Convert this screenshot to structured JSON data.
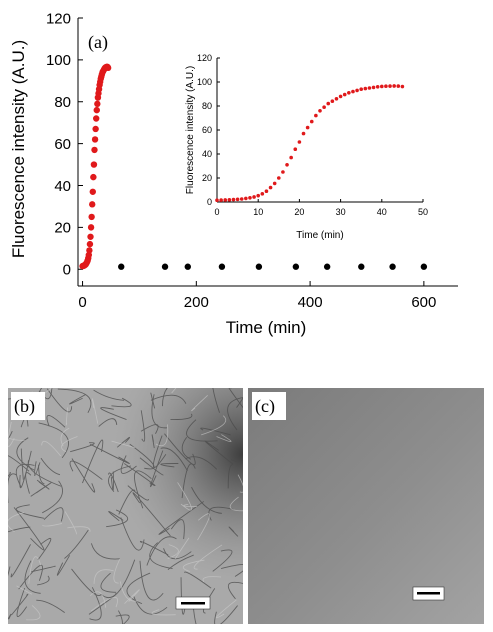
{
  "colors": {
    "series_red": "#e0191b",
    "series_black": "#000000"
  },
  "panels": {
    "a": "(a)",
    "b": "(b)",
    "c": "(c)"
  },
  "images": {
    "b": "TEM micrograph with dense fibrillar network and scale bar",
    "c": "TEM micrograph with featureless grey background and scale bar"
  },
  "chart_data": [
    {
      "type": "scatter",
      "xlabel": "Time (min)",
      "ylabel": "Fluorescence intensity (A.U.)",
      "xlim": [
        -8,
        660
      ],
      "ylim": [
        -8,
        120
      ],
      "xticks": [
        0,
        200,
        400,
        600
      ],
      "yticks": [
        0,
        20,
        40,
        60,
        80,
        100,
        120
      ],
      "series": [
        {
          "color": "#e0191b",
          "x": [
            0,
            1,
            2,
            3,
            4,
            5,
            6,
            7,
            8,
            9,
            10,
            11,
            12,
            13,
            14,
            15,
            16,
            17,
            18,
            19,
            20,
            21,
            22,
            23,
            24,
            25,
            26,
            27,
            28,
            29,
            30,
            31,
            32,
            33,
            34,
            35,
            36,
            37,
            38,
            39,
            40,
            41,
            42,
            43,
            44,
            45
          ],
          "y": [
            1.5,
            1.6,
            1.7,
            1.8,
            2,
            2.2,
            2.5,
            3,
            3.5,
            4.2,
            5.3,
            6.8,
            9,
            12,
            15.5,
            20,
            25,
            31,
            37,
            44,
            50,
            57,
            62,
            67,
            72,
            76,
            79,
            82,
            84,
            86,
            88,
            89.5,
            91,
            92,
            93,
            94,
            94.5,
            95,
            95.5,
            96,
            96.3,
            96.5,
            96.6,
            96.7,
            96.6,
            96.2
          ]
        },
        {
          "color": "#000000",
          "x": [
            68,
            145,
            185,
            245,
            310,
            375,
            430,
            490,
            545,
            600
          ],
          "y": [
            1.2,
            1.2,
            1.2,
            1.2,
            1.2,
            1.2,
            1.2,
            1.2,
            1.2,
            1.2
          ]
        }
      ]
    },
    {
      "type": "scatter",
      "xlabel": "Time (min)",
      "ylabel": "Fluorescence intensity (A.U.)",
      "xlim": [
        0,
        50
      ],
      "ylim": [
        0,
        120
      ],
      "xticks": [
        0,
        10,
        20,
        30,
        40,
        50
      ],
      "yticks": [
        0,
        20,
        40,
        60,
        80,
        100,
        120
      ],
      "series": [
        {
          "color": "#e0191b",
          "x": [
            0,
            1,
            2,
            3,
            4,
            5,
            6,
            7,
            8,
            9,
            10,
            11,
            12,
            13,
            14,
            15,
            16,
            17,
            18,
            19,
            20,
            21,
            22,
            23,
            24,
            25,
            26,
            27,
            28,
            29,
            30,
            31,
            32,
            33,
            34,
            35,
            36,
            37,
            38,
            39,
            40,
            41,
            42,
            43,
            44,
            45
          ],
          "y": [
            1.5,
            1.6,
            1.7,
            1.8,
            2,
            2.2,
            2.5,
            3,
            3.5,
            4.2,
            5.3,
            6.8,
            9,
            12,
            15.5,
            20,
            25,
            31,
            37,
            44,
            50,
            57,
            62,
            67,
            72,
            76,
            79,
            82,
            84,
            86,
            88,
            89.5,
            91,
            92,
            93,
            94,
            94.5,
            95,
            95.5,
            96,
            96.3,
            96.5,
            96.6,
            96.7,
            96.6,
            96.2
          ]
        }
      ]
    }
  ]
}
